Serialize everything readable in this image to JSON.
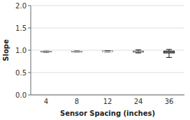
{
  "chart_data": {
    "type": "box",
    "xlabel": "Sensor Spacing (inches)",
    "ylabel": "Slope",
    "categories": [
      "4",
      "8",
      "12",
      "24",
      "36"
    ],
    "medians": [
      0.968,
      0.972,
      0.978,
      0.972,
      0.958
    ],
    "q1": [
      0.963,
      0.967,
      0.973,
      0.962,
      0.938
    ],
    "q3": [
      0.972,
      0.976,
      0.982,
      0.98,
      0.982
    ],
    "whislo": [
      0.953,
      0.96,
      0.966,
      0.938,
      0.838
    ],
    "whishi": [
      0.98,
      0.984,
      0.99,
      1.008,
      1.018
    ],
    "colors": [
      "#111111",
      "#111111",
      "#111111",
      "#111111",
      "#ffffff"
    ],
    "color": "#111111",
    "ylim": [
      0.0,
      2.0
    ],
    "yticks": [
      {
        "value": 0.0,
        "label": "0.0"
      },
      {
        "value": 0.5,
        "label": "0.5"
      },
      {
        "value": 1.0,
        "label": "1.0"
      },
      {
        "value": 1.5,
        "label": "1.5"
      },
      {
        "value": 2.0,
        "label": "2.0"
      }
    ],
    "grid": true
  }
}
